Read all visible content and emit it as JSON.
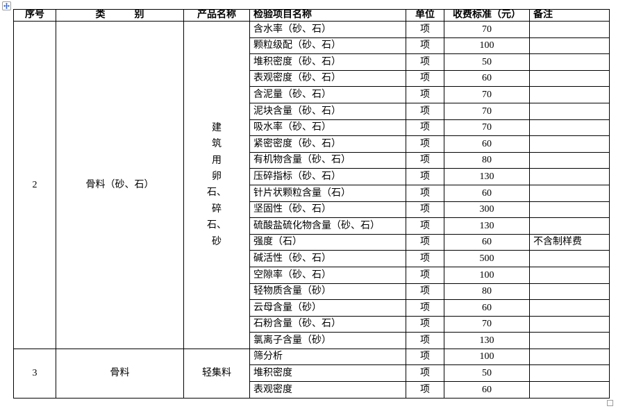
{
  "colors": {
    "table_border": "#000000",
    "text": "#000000",
    "move_arrow_blue": "#3a66c8",
    "handle_border": "#9e9e9e"
  },
  "icons": {
    "move_handle": "four-way-arrow",
    "resize_handle": "small-square"
  },
  "table": {
    "headers": {
      "serial": "序号",
      "category": "类　　　别",
      "product": "产品名称",
      "item": "检验项目名称",
      "unit": "单位",
      "fee": "收费标准（元）",
      "note": "备注"
    },
    "groups": [
      {
        "serial": "2",
        "category": "骨料（砂、石）",
        "product_lines": [
          "建",
          "筑",
          "用",
          "卵",
          "石、",
          "碎",
          "石、",
          "砂"
        ],
        "items": [
          {
            "name": "含水率（砂、石）",
            "unit": "项",
            "fee": "70",
            "note": ""
          },
          {
            "name": "颗粒级配（砂、石）",
            "unit": "项",
            "fee": "100",
            "note": ""
          },
          {
            "name": "堆积密度（砂、石）",
            "unit": "项",
            "fee": "50",
            "note": ""
          },
          {
            "name": "表观密度（砂、石）",
            "unit": "项",
            "fee": "60",
            "note": ""
          },
          {
            "name": "含泥量（砂、石）",
            "unit": "项",
            "fee": "70",
            "note": ""
          },
          {
            "name": "泥块含量（砂、石）",
            "unit": "项",
            "fee": "70",
            "note": ""
          },
          {
            "name": "吸水率（砂、石）",
            "unit": "项",
            "fee": "70",
            "note": ""
          },
          {
            "name": "紧密密度（砂、石）",
            "unit": "项",
            "fee": "60",
            "note": ""
          },
          {
            "name": "有机物含量（砂、石）",
            "unit": "项",
            "fee": "80",
            "note": ""
          },
          {
            "name": "压碎指标（砂、石）",
            "unit": "项",
            "fee": "130",
            "note": ""
          },
          {
            "name": "针片状颗粒含量（石）",
            "unit": "项",
            "fee": "60",
            "note": ""
          },
          {
            "name": "坚固性（砂、石）",
            "unit": "项",
            "fee": "300",
            "note": ""
          },
          {
            "name": "硫酸盐硫化物含量（砂、石）",
            "unit": "项",
            "fee": "130",
            "note": ""
          },
          {
            "name": "强度（石）",
            "unit": "项",
            "fee": "60",
            "note": "不含制样费"
          },
          {
            "name": "碱活性（砂、石）",
            "unit": "项",
            "fee": "500",
            "note": ""
          },
          {
            "name": "空隙率（砂、石）",
            "unit": "项",
            "fee": "100",
            "note": ""
          },
          {
            "name": "轻物质含量（砂）",
            "unit": "项",
            "fee": "80",
            "note": ""
          },
          {
            "name": "云母含量（砂）",
            "unit": "项",
            "fee": "60",
            "note": ""
          },
          {
            "name": "石粉含量（砂、石）",
            "unit": "项",
            "fee": "70",
            "note": ""
          },
          {
            "name": "氯离子含量（砂）",
            "unit": "项",
            "fee": "130",
            "note": ""
          }
        ]
      },
      {
        "serial": "3",
        "category": "骨料",
        "product_lines": [
          "轻集料"
        ],
        "items": [
          {
            "name": "筛分析",
            "unit": "项",
            "fee": "100",
            "note": ""
          },
          {
            "name": "堆积密度",
            "unit": "项",
            "fee": "50",
            "note": ""
          },
          {
            "name": "表观密度",
            "unit": "项",
            "fee": "60",
            "note": ""
          }
        ]
      }
    ]
  }
}
